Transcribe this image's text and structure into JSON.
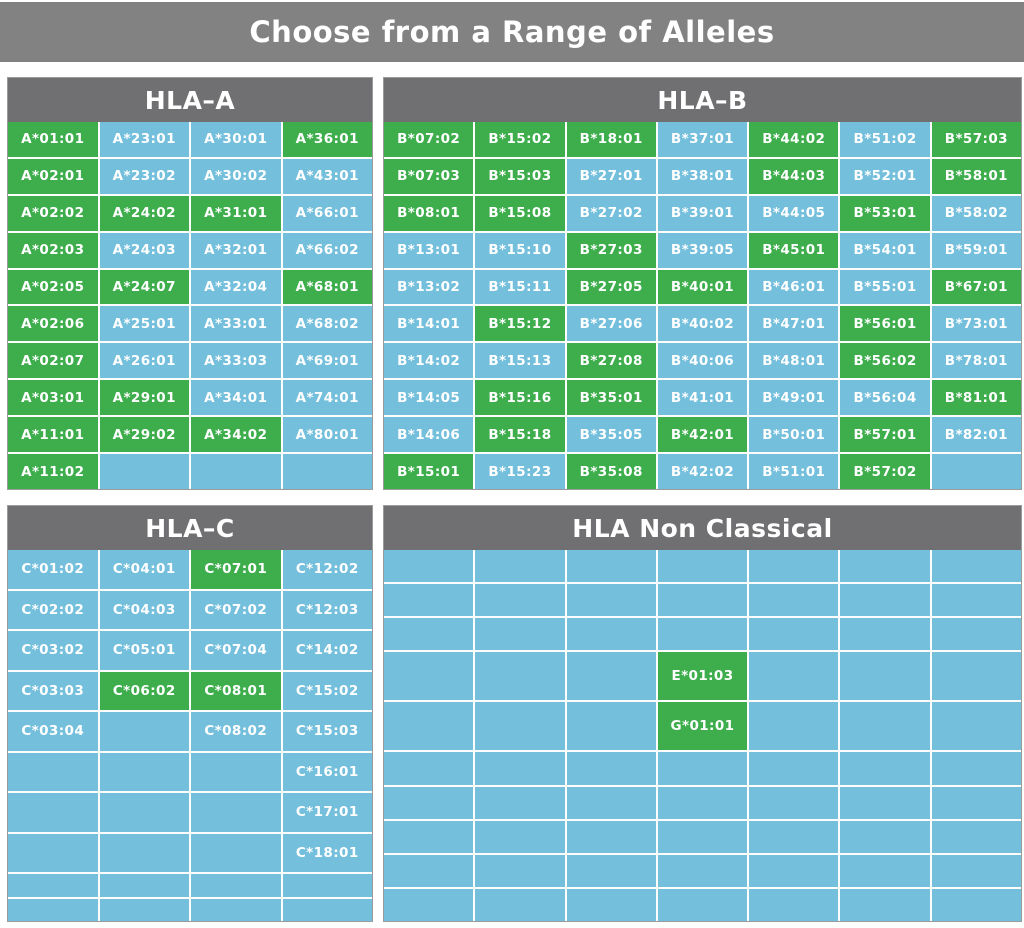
{
  "title": "Choose from a Range of Alleles",
  "colors": {
    "selected_green": "#3eae4d",
    "unselected_blue": "#74bfdc",
    "panel_header_gray": "#707072",
    "banner_gray": "#828282",
    "cell_text": "#ffffff"
  },
  "panels": [
    {
      "id": "hla-a",
      "title": "HLA–A",
      "columns": 4,
      "rows": [
        [
          [
            "A*01:01",
            1
          ],
          [
            "A*23:01",
            0
          ],
          [
            "A*30:01",
            0
          ],
          [
            "A*36:01",
            1
          ]
        ],
        [
          [
            "A*02:01",
            1
          ],
          [
            "A*23:02",
            0
          ],
          [
            "A*30:02",
            0
          ],
          [
            "A*43:01",
            0
          ]
        ],
        [
          [
            "A*02:02",
            1
          ],
          [
            "A*24:02",
            1
          ],
          [
            "A*31:01",
            1
          ],
          [
            "A*66:01",
            0
          ]
        ],
        [
          [
            "A*02:03",
            1
          ],
          [
            "A*24:03",
            0
          ],
          [
            "A*32:01",
            0
          ],
          [
            "A*66:02",
            0
          ]
        ],
        [
          [
            "A*02:05",
            1
          ],
          [
            "A*24:07",
            1
          ],
          [
            "A*32:04",
            0
          ],
          [
            "A*68:01",
            1
          ]
        ],
        [
          [
            "A*02:06",
            1
          ],
          [
            "A*25:01",
            0
          ],
          [
            "A*33:01",
            0
          ],
          [
            "A*68:02",
            0
          ]
        ],
        [
          [
            "A*02:07",
            1
          ],
          [
            "A*26:01",
            0
          ],
          [
            "A*33:03",
            0
          ],
          [
            "A*69:01",
            0
          ]
        ],
        [
          [
            "A*03:01",
            1
          ],
          [
            "A*29:01",
            1
          ],
          [
            "A*34:01",
            0
          ],
          [
            "A*74:01",
            0
          ]
        ],
        [
          [
            "A*11:01",
            1
          ],
          [
            "A*29:02",
            1
          ],
          [
            "A*34:02",
            1
          ],
          [
            "A*80:01",
            0
          ]
        ],
        [
          [
            "A*11:02",
            1
          ],
          [
            "",
            0
          ],
          [
            "",
            0
          ],
          [
            "",
            0
          ]
        ]
      ]
    },
    {
      "id": "hla-b",
      "title": "HLA–B",
      "columns": 7,
      "rows": [
        [
          [
            "B*07:02",
            1
          ],
          [
            "B*15:02",
            1
          ],
          [
            "B*18:01",
            1
          ],
          [
            "B*37:01",
            0
          ],
          [
            "B*44:02",
            1
          ],
          [
            "B*51:02",
            0
          ],
          [
            "B*57:03",
            1
          ]
        ],
        [
          [
            "B*07:03",
            1
          ],
          [
            "B*15:03",
            1
          ],
          [
            "B*27:01",
            0
          ],
          [
            "B*38:01",
            0
          ],
          [
            "B*44:03",
            1
          ],
          [
            "B*52:01",
            0
          ],
          [
            "B*58:01",
            1
          ]
        ],
        [
          [
            "B*08:01",
            1
          ],
          [
            "B*15:08",
            1
          ],
          [
            "B*27:02",
            0
          ],
          [
            "B*39:01",
            0
          ],
          [
            "B*44:05",
            0
          ],
          [
            "B*53:01",
            1
          ],
          [
            "B*58:02",
            0
          ]
        ],
        [
          [
            "B*13:01",
            0
          ],
          [
            "B*15:10",
            0
          ],
          [
            "B*27:03",
            1
          ],
          [
            "B*39:05",
            0
          ],
          [
            "B*45:01",
            1
          ],
          [
            "B*54:01",
            0
          ],
          [
            "B*59:01",
            0
          ]
        ],
        [
          [
            "B*13:02",
            0
          ],
          [
            "B*15:11",
            0
          ],
          [
            "B*27:05",
            1
          ],
          [
            "B*40:01",
            1
          ],
          [
            "B*46:01",
            0
          ],
          [
            "B*55:01",
            0
          ],
          [
            "B*67:01",
            1
          ]
        ],
        [
          [
            "B*14:01",
            0
          ],
          [
            "B*15:12",
            1
          ],
          [
            "B*27:06",
            0
          ],
          [
            "B*40:02",
            0
          ],
          [
            "B*47:01",
            0
          ],
          [
            "B*56:01",
            1
          ],
          [
            "B*73:01",
            0
          ]
        ],
        [
          [
            "B*14:02",
            0
          ],
          [
            "B*15:13",
            0
          ],
          [
            "B*27:08",
            1
          ],
          [
            "B*40:06",
            0
          ],
          [
            "B*48:01",
            0
          ],
          [
            "B*56:02",
            1
          ],
          [
            "B*78:01",
            0
          ]
        ],
        [
          [
            "B*14:05",
            0
          ],
          [
            "B*15:16",
            1
          ],
          [
            "B*35:01",
            1
          ],
          [
            "B*41:01",
            0
          ],
          [
            "B*49:01",
            0
          ],
          [
            "B*56:04",
            0
          ],
          [
            "B*81:01",
            1
          ]
        ],
        [
          [
            "B*14:06",
            0
          ],
          [
            "B*15:18",
            1
          ],
          [
            "B*35:05",
            0
          ],
          [
            "B*42:01",
            1
          ],
          [
            "B*50:01",
            0
          ],
          [
            "B*57:01",
            1
          ],
          [
            "B*82:01",
            0
          ]
        ],
        [
          [
            "B*15:01",
            1
          ],
          [
            "B*15:23",
            0
          ],
          [
            "B*35:08",
            1
          ],
          [
            "B*42:02",
            0
          ],
          [
            "B*51:01",
            0
          ],
          [
            "B*57:02",
            1
          ],
          [
            "",
            0
          ]
        ]
      ]
    },
    {
      "id": "hla-c",
      "title": "HLA–C",
      "columns": 4,
      "rows": [
        [
          [
            "C*01:02",
            0
          ],
          [
            "C*04:01",
            0
          ],
          [
            "C*07:01",
            1
          ],
          [
            "C*12:02",
            0
          ]
        ],
        [
          [
            "C*02:02",
            0
          ],
          [
            "C*04:03",
            0
          ],
          [
            "C*07:02",
            0
          ],
          [
            "C*12:03",
            0
          ]
        ],
        [
          [
            "C*03:02",
            0
          ],
          [
            "C*05:01",
            0
          ],
          [
            "C*07:04",
            0
          ],
          [
            "C*14:02",
            0
          ]
        ],
        [
          [
            "C*03:03",
            0
          ],
          [
            "C*06:02",
            1
          ],
          [
            "C*08:01",
            1
          ],
          [
            "C*15:02",
            0
          ]
        ],
        [
          [
            "C*03:04",
            0
          ],
          [
            "",
            0
          ],
          [
            "C*08:02",
            0
          ],
          [
            "C*15:03",
            0
          ]
        ],
        [
          [
            "",
            0
          ],
          [
            "",
            0
          ],
          [
            "",
            0
          ],
          [
            "C*16:01",
            0
          ]
        ],
        [
          [
            "",
            0
          ],
          [
            "",
            0
          ],
          [
            "",
            0
          ],
          [
            "C*17:01",
            0
          ]
        ],
        [
          [
            "",
            0
          ],
          [
            "",
            0
          ],
          [
            "",
            0
          ],
          [
            "C*18:01",
            0
          ]
        ],
        [
          [
            "",
            0
          ],
          [
            "",
            0
          ],
          [
            "",
            0
          ],
          [
            "",
            0
          ]
        ],
        [
          [
            "",
            0
          ],
          [
            "",
            0
          ],
          [
            "",
            0
          ],
          [
            "",
            0
          ]
        ]
      ]
    },
    {
      "id": "hla-nonclassical",
      "title": "HLA Non Classical",
      "columns": 7,
      "rows": [
        [
          [
            "",
            0
          ],
          [
            "",
            0
          ],
          [
            "",
            0
          ],
          [
            "",
            0
          ],
          [
            "",
            0
          ],
          [
            "",
            0
          ],
          [
            "",
            0
          ]
        ],
        [
          [
            "",
            0
          ],
          [
            "",
            0
          ],
          [
            "",
            0
          ],
          [
            "",
            0
          ],
          [
            "",
            0
          ],
          [
            "",
            0
          ],
          [
            "",
            0
          ]
        ],
        [
          [
            "",
            0
          ],
          [
            "",
            0
          ],
          [
            "",
            0
          ],
          [
            "",
            0
          ],
          [
            "",
            0
          ],
          [
            "",
            0
          ],
          [
            "",
            0
          ]
        ],
        [
          [
            "",
            0
          ],
          [
            "",
            0
          ],
          [
            "",
            0
          ],
          [
            "E*01:03",
            1
          ],
          [
            "",
            0
          ],
          [
            "",
            0
          ],
          [
            "",
            0
          ]
        ],
        [
          [
            "",
            0
          ],
          [
            "",
            0
          ],
          [
            "",
            0
          ],
          [
            "G*01:01",
            1
          ],
          [
            "",
            0
          ],
          [
            "",
            0
          ],
          [
            "",
            0
          ]
        ],
        [
          [
            "",
            0
          ],
          [
            "",
            0
          ],
          [
            "",
            0
          ],
          [
            "",
            0
          ],
          [
            "",
            0
          ],
          [
            "",
            0
          ],
          [
            "",
            0
          ]
        ],
        [
          [
            "",
            0
          ],
          [
            "",
            0
          ],
          [
            "",
            0
          ],
          [
            "",
            0
          ],
          [
            "",
            0
          ],
          [
            "",
            0
          ],
          [
            "",
            0
          ]
        ],
        [
          [
            "",
            0
          ],
          [
            "",
            0
          ],
          [
            "",
            0
          ],
          [
            "",
            0
          ],
          [
            "",
            0
          ],
          [
            "",
            0
          ],
          [
            "",
            0
          ]
        ],
        [
          [
            "",
            0
          ],
          [
            "",
            0
          ],
          [
            "",
            0
          ],
          [
            "",
            0
          ],
          [
            "",
            0
          ],
          [
            "",
            0
          ],
          [
            "",
            0
          ]
        ],
        [
          [
            "",
            0
          ],
          [
            "",
            0
          ],
          [
            "",
            0
          ],
          [
            "",
            0
          ],
          [
            "",
            0
          ],
          [
            "",
            0
          ],
          [
            "",
            0
          ]
        ]
      ]
    }
  ]
}
